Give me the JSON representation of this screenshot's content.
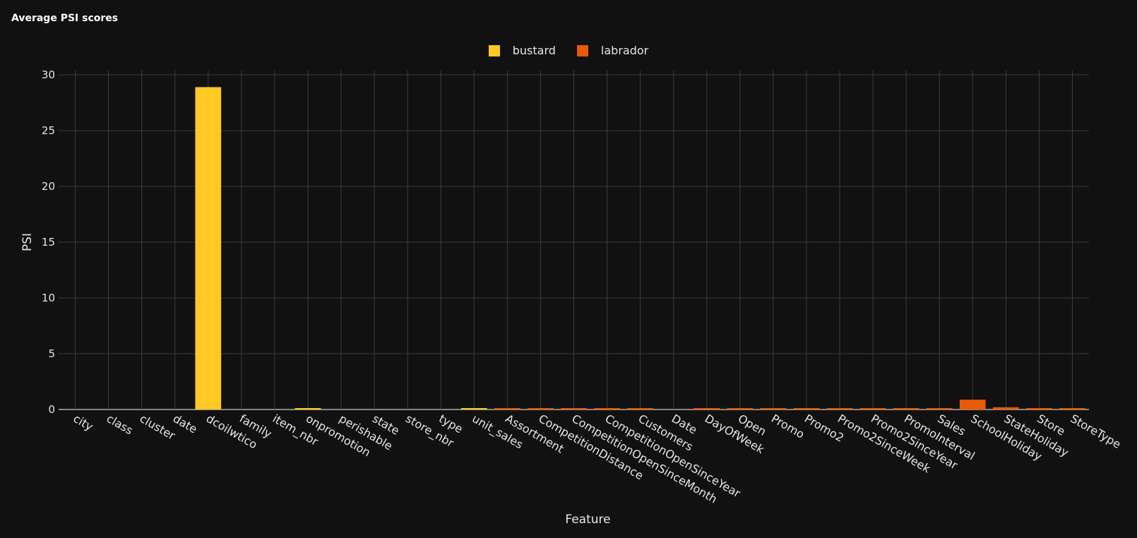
{
  "title": "Average PSI scores",
  "colors": {
    "background": "#111111",
    "grid": "#3c3c3c",
    "text": "#e6e6e6",
    "bustard": "#ffc823",
    "labrador": "#e85a05"
  },
  "chart_data": {
    "type": "bar",
    "title": "Average PSI scores",
    "xlabel": "Feature",
    "ylabel": "PSI",
    "ylim": [
      0,
      30
    ],
    "yticks": [
      0,
      5,
      10,
      15,
      20,
      25,
      30
    ],
    "grid": true,
    "legend_position": "top-center",
    "categories": [
      "city",
      "class",
      "cluster",
      "date",
      "dcoilwtico",
      "family",
      "item_nbr",
      "onpromotion",
      "perishable",
      "state",
      "store_nbr",
      "type",
      "unit_sales",
      "Assortment",
      "CompetitionDistance",
      "CompetitionOpenSinceMonth",
      "CompetitionOpenSinceYear",
      "Customers",
      "Date",
      "DayOfWeek",
      "Open",
      "Promo",
      "Promo2",
      "Promo2SinceWeek",
      "Promo2SinceYear",
      "PromoInterval",
      "Sales",
      "SchoolHoliday",
      "StateHoliday",
      "Store",
      "StoreType"
    ],
    "series": [
      {
        "name": "bustard",
        "color": "#ffc823",
        "values": [
          0,
          0,
          0,
          0,
          28.9,
          0,
          0,
          0.03,
          0,
          0,
          0,
          0,
          0.02,
          null,
          null,
          null,
          null,
          null,
          null,
          null,
          null,
          null,
          null,
          null,
          null,
          null,
          null,
          null,
          null,
          null,
          null
        ]
      },
      {
        "name": "labrador",
        "color": "#e85a05",
        "values": [
          null,
          null,
          null,
          null,
          null,
          null,
          null,
          null,
          null,
          null,
          null,
          null,
          null,
          0.05,
          0.05,
          0.12,
          0.05,
          0.05,
          0,
          0.05,
          0.05,
          0.05,
          0.05,
          0.05,
          0.12,
          0.1,
          0.05,
          0.88,
          0.2,
          0.05,
          0.05
        ]
      }
    ]
  }
}
